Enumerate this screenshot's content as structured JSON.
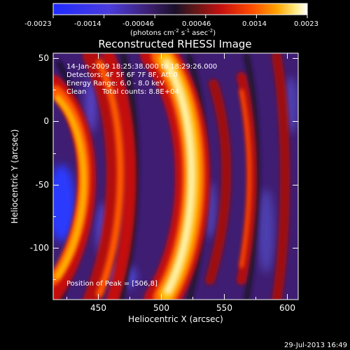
{
  "colorbar": {
    "tick_labels": [
      "-0.0023",
      "-0.0014",
      "-0.00046",
      "0.00046",
      "0.0014",
      "0.0023"
    ],
    "unit_parts": [
      "(photons cm",
      "-2",
      " s",
      "-1",
      " asec",
      "-2",
      ")"
    ]
  },
  "title": "Reconstructed RHESSI Image",
  "overlay": {
    "time_range": "14-Jan-2009 18:25:38.000 to 18:29:26.000",
    "detectors": "Detectors: 4F 5F 6F 7F 8F, Att 0",
    "energy_range": "Energy Range: 6.0 - 8.0 keV",
    "clean_label": "Clean",
    "total_counts": "Total counts: 8.8E+04",
    "peak": "Position of Peak = [506,8]"
  },
  "axes": {
    "xlabel": "Heliocentric X (arcsec)",
    "ylabel": "Heliocentric Y (arcsec)",
    "x_ticks": [
      "450",
      "500",
      "550",
      "600"
    ],
    "y_ticks": [
      "50",
      "0",
      "-50",
      "-100"
    ]
  },
  "footer": {
    "timestamp": "29-Jul-2013 16:49"
  },
  "colors": {
    "background": "#000000",
    "foreground": "#ffffff",
    "colormap": [
      "#1f2bff",
      "#4b3cdc",
      "#3c1f6e",
      "#1a0f2a",
      "#5a1818",
      "#c41010",
      "#ff4a00",
      "#ffa200",
      "#ffe87a",
      "#ffffff"
    ]
  }
}
